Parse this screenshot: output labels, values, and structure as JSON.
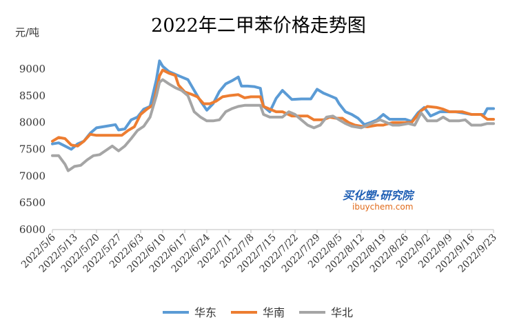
{
  "chart_data": {
    "type": "line",
    "title": "2022年二甲苯价格走势图",
    "ylabel": "元/吨",
    "ylim": [
      6000,
      9000
    ],
    "yticks": [
      6000,
      6500,
      7000,
      7500,
      8000,
      8500,
      9000
    ],
    "x_tick_labels": [
      "2022/5/6",
      "2022/5/13",
      "2022/5/20",
      "2022/5/27",
      "2022/6/3",
      "2022/6/10",
      "2022/6/17",
      "2022/6/24",
      "2022/7/1",
      "2022/7/8",
      "2022/7/15",
      "2022/7/22",
      "2022/7/29",
      "2022/8/5",
      "2022/8/12",
      "2022/8/19",
      "2022/8/26",
      "2022/9/2",
      "2022/9/9",
      "2022/9/16",
      "2022/9/23"
    ],
    "x_range": [
      "2022/5/6",
      "2022/9/23"
    ],
    "legend_position": "bottom",
    "grid": false,
    "series": [
      {
        "name": "华东",
        "color": "#5b9bd5",
        "points": [
          [
            "2022/5/6",
            7600
          ],
          [
            "2022/5/8",
            7620
          ],
          [
            "2022/5/10",
            7560
          ],
          [
            "2022/5/12",
            7500
          ],
          [
            "2022/5/14",
            7600
          ],
          [
            "2022/5/16",
            7650
          ],
          [
            "2022/5/18",
            7800
          ],
          [
            "2022/5/20",
            7900
          ],
          [
            "2022/5/23",
            7930
          ],
          [
            "2022/5/26",
            7960
          ],
          [
            "2022/5/27",
            7860
          ],
          [
            "2022/5/29",
            7880
          ],
          [
            "2022/5/31",
            8050
          ],
          [
            "2022/6/2",
            8100
          ],
          [
            "2022/6/4",
            8250
          ],
          [
            "2022/6/6",
            8300
          ],
          [
            "2022/6/8",
            8800
          ],
          [
            "2022/6/9",
            9150
          ],
          [
            "2022/6/10",
            9050
          ],
          [
            "2022/6/12",
            8950
          ],
          [
            "2022/6/14",
            8900
          ],
          [
            "2022/6/16",
            8850
          ],
          [
            "2022/6/18",
            8800
          ],
          [
            "2022/6/20",
            8600
          ],
          [
            "2022/6/22",
            8400
          ],
          [
            "2022/6/24",
            8230
          ],
          [
            "2022/6/26",
            8350
          ],
          [
            "2022/6/28",
            8580
          ],
          [
            "2022/6/30",
            8720
          ],
          [
            "2022/7/2",
            8780
          ],
          [
            "2022/7/4",
            8850
          ],
          [
            "2022/7/5",
            8680
          ],
          [
            "2022/7/7",
            8680
          ],
          [
            "2022/7/9",
            8670
          ],
          [
            "2022/7/11",
            8640
          ],
          [
            "2022/7/12",
            8300
          ],
          [
            "2022/7/14",
            8200
          ],
          [
            "2022/7/16",
            8450
          ],
          [
            "2022/7/18",
            8600
          ],
          [
            "2022/7/21",
            8430
          ],
          [
            "2022/7/24",
            8440
          ],
          [
            "2022/7/27",
            8440
          ],
          [
            "2022/7/29",
            8620
          ],
          [
            "2022/7/31",
            8550
          ],
          [
            "2022/8/2",
            8500
          ],
          [
            "2022/8/4",
            8450
          ],
          [
            "2022/8/5",
            8350
          ],
          [
            "2022/8/7",
            8200
          ],
          [
            "2022/8/9",
            8150
          ],
          [
            "2022/8/11",
            8080
          ],
          [
            "2022/8/13",
            7960
          ],
          [
            "2022/8/15",
            8000
          ],
          [
            "2022/8/17",
            8050
          ],
          [
            "2022/8/19",
            8150
          ],
          [
            "2022/8/21",
            8060
          ],
          [
            "2022/8/24",
            8060
          ],
          [
            "2022/8/26",
            8060
          ],
          [
            "2022/8/28",
            8020
          ],
          [
            "2022/8/30",
            8180
          ],
          [
            "2022/9/1",
            8280
          ],
          [
            "2022/9/3",
            8120
          ],
          [
            "2022/9/6",
            8200
          ],
          [
            "2022/9/8",
            8200
          ],
          [
            "2022/9/11",
            8200
          ],
          [
            "2022/9/13",
            8180
          ],
          [
            "2022/9/16",
            8150
          ],
          [
            "2022/9/18",
            8150
          ],
          [
            "2022/9/20",
            8150
          ],
          [
            "2022/9/21",
            8260
          ],
          [
            "2022/9/23",
            8260
          ]
        ]
      },
      {
        "name": "华南",
        "color": "#ed7d31",
        "points": [
          [
            "2022/5/6",
            7650
          ],
          [
            "2022/5/8",
            7720
          ],
          [
            "2022/5/10",
            7700
          ],
          [
            "2022/5/12",
            7580
          ],
          [
            "2022/5/14",
            7560
          ],
          [
            "2022/5/16",
            7650
          ],
          [
            "2022/5/18",
            7780
          ],
          [
            "2022/5/20",
            7760
          ],
          [
            "2022/5/23",
            7760
          ],
          [
            "2022/5/26",
            7760
          ],
          [
            "2022/5/28",
            7760
          ],
          [
            "2022/5/30",
            7850
          ],
          [
            "2022/6/1",
            7920
          ],
          [
            "2022/6/3",
            8150
          ],
          [
            "2022/6/5",
            8250
          ],
          [
            "2022/6/7",
            8330
          ],
          [
            "2022/6/9",
            8870
          ],
          [
            "2022/6/10",
            8980
          ],
          [
            "2022/6/12",
            8920
          ],
          [
            "2022/6/14",
            8880
          ],
          [
            "2022/6/15",
            8700
          ],
          [
            "2022/6/17",
            8570
          ],
          [
            "2022/6/19",
            8530
          ],
          [
            "2022/6/21",
            8480
          ],
          [
            "2022/6/23",
            8350
          ],
          [
            "2022/6/25",
            8350
          ],
          [
            "2022/6/27",
            8400
          ],
          [
            "2022/6/29",
            8480
          ],
          [
            "2022/7/1",
            8500
          ],
          [
            "2022/7/4",
            8520
          ],
          [
            "2022/7/6",
            8460
          ],
          [
            "2022/7/8",
            8480
          ],
          [
            "2022/7/11",
            8480
          ],
          [
            "2022/7/12",
            8300
          ],
          [
            "2022/7/14",
            8250
          ],
          [
            "2022/7/16",
            8200
          ],
          [
            "2022/7/18",
            8200
          ],
          [
            "2022/7/21",
            8120
          ],
          [
            "2022/7/24",
            8120
          ],
          [
            "2022/7/26",
            8120
          ],
          [
            "2022/7/28",
            8050
          ],
          [
            "2022/7/31",
            8050
          ],
          [
            "2022/8/2",
            8100
          ],
          [
            "2022/8/4",
            8080
          ],
          [
            "2022/8/6",
            8080
          ],
          [
            "2022/8/8",
            8000
          ],
          [
            "2022/8/10",
            7950
          ],
          [
            "2022/8/12",
            7930
          ],
          [
            "2022/8/14",
            7920
          ],
          [
            "2022/8/17",
            7950
          ],
          [
            "2022/8/19",
            7950
          ],
          [
            "2022/8/22",
            8000
          ],
          [
            "2022/8/25",
            8000
          ],
          [
            "2022/8/28",
            8000
          ],
          [
            "2022/8/31",
            8220
          ],
          [
            "2022/9/2",
            8300
          ],
          [
            "2022/9/5",
            8280
          ],
          [
            "2022/9/7",
            8250
          ],
          [
            "2022/9/9",
            8200
          ],
          [
            "2022/9/13",
            8200
          ],
          [
            "2022/9/16",
            8150
          ],
          [
            "2022/9/19",
            8150
          ],
          [
            "2022/9/21",
            8060
          ],
          [
            "2022/9/23",
            8060
          ]
        ]
      },
      {
        "name": "华北",
        "color": "#a5a5a5",
        "points": [
          [
            "2022/5/6",
            7380
          ],
          [
            "2022/5/8",
            7380
          ],
          [
            "2022/5/10",
            7220
          ],
          [
            "2022/5/11",
            7100
          ],
          [
            "2022/5/13",
            7180
          ],
          [
            "2022/5/15",
            7200
          ],
          [
            "2022/5/17",
            7300
          ],
          [
            "2022/5/19",
            7380
          ],
          [
            "2022/5/21",
            7400
          ],
          [
            "2022/5/23",
            7480
          ],
          [
            "2022/5/25",
            7560
          ],
          [
            "2022/5/27",
            7470
          ],
          [
            "2022/5/29",
            7560
          ],
          [
            "2022/5/31",
            7700
          ],
          [
            "2022/6/2",
            7850
          ],
          [
            "2022/6/4",
            7930
          ],
          [
            "2022/6/6",
            8100
          ],
          [
            "2022/6/8",
            8500
          ],
          [
            "2022/6/9",
            8750
          ],
          [
            "2022/6/10",
            8800
          ],
          [
            "2022/6/12",
            8720
          ],
          [
            "2022/6/14",
            8650
          ],
          [
            "2022/6/16",
            8600
          ],
          [
            "2022/6/18",
            8500
          ],
          [
            "2022/6/20",
            8200
          ],
          [
            "2022/6/22",
            8100
          ],
          [
            "2022/6/24",
            8030
          ],
          [
            "2022/6/26",
            8030
          ],
          [
            "2022/6/28",
            8050
          ],
          [
            "2022/6/30",
            8200
          ],
          [
            "2022/7/2",
            8260
          ],
          [
            "2022/7/4",
            8300
          ],
          [
            "2022/7/6",
            8320
          ],
          [
            "2022/7/8",
            8320
          ],
          [
            "2022/7/11",
            8320
          ],
          [
            "2022/7/12",
            8150
          ],
          [
            "2022/7/14",
            8100
          ],
          [
            "2022/7/16",
            8100
          ],
          [
            "2022/7/18",
            8100
          ],
          [
            "2022/7/20",
            8200
          ],
          [
            "2022/7/22",
            8150
          ],
          [
            "2022/7/24",
            8050
          ],
          [
            "2022/7/26",
            7950
          ],
          [
            "2022/7/28",
            7900
          ],
          [
            "2022/7/30",
            7950
          ],
          [
            "2022/8/1",
            8100
          ],
          [
            "2022/8/3",
            8120
          ],
          [
            "2022/8/5",
            8050
          ],
          [
            "2022/8/7",
            7980
          ],
          [
            "2022/8/9",
            7930
          ],
          [
            "2022/8/12",
            7900
          ],
          [
            "2022/8/14",
            7950
          ],
          [
            "2022/8/16",
            8000
          ],
          [
            "2022/8/18",
            8050
          ],
          [
            "2022/8/20",
            8000
          ],
          [
            "2022/8/22",
            7950
          ],
          [
            "2022/8/24",
            7950
          ],
          [
            "2022/8/27",
            7980
          ],
          [
            "2022/8/29",
            7950
          ],
          [
            "2022/8/31",
            8180
          ],
          [
            "2022/9/2",
            8030
          ],
          [
            "2022/9/5",
            8030
          ],
          [
            "2022/9/7",
            8100
          ],
          [
            "2022/9/9",
            8030
          ],
          [
            "2022/9/12",
            8030
          ],
          [
            "2022/9/14",
            8050
          ],
          [
            "2022/9/16",
            7950
          ],
          [
            "2022/9/19",
            7950
          ],
          [
            "2022/9/21",
            7980
          ],
          [
            "2022/9/23",
            7980
          ]
        ]
      }
    ]
  },
  "watermark": {
    "main": "买化塑·研究院",
    "url": "ibuychem.com"
  }
}
